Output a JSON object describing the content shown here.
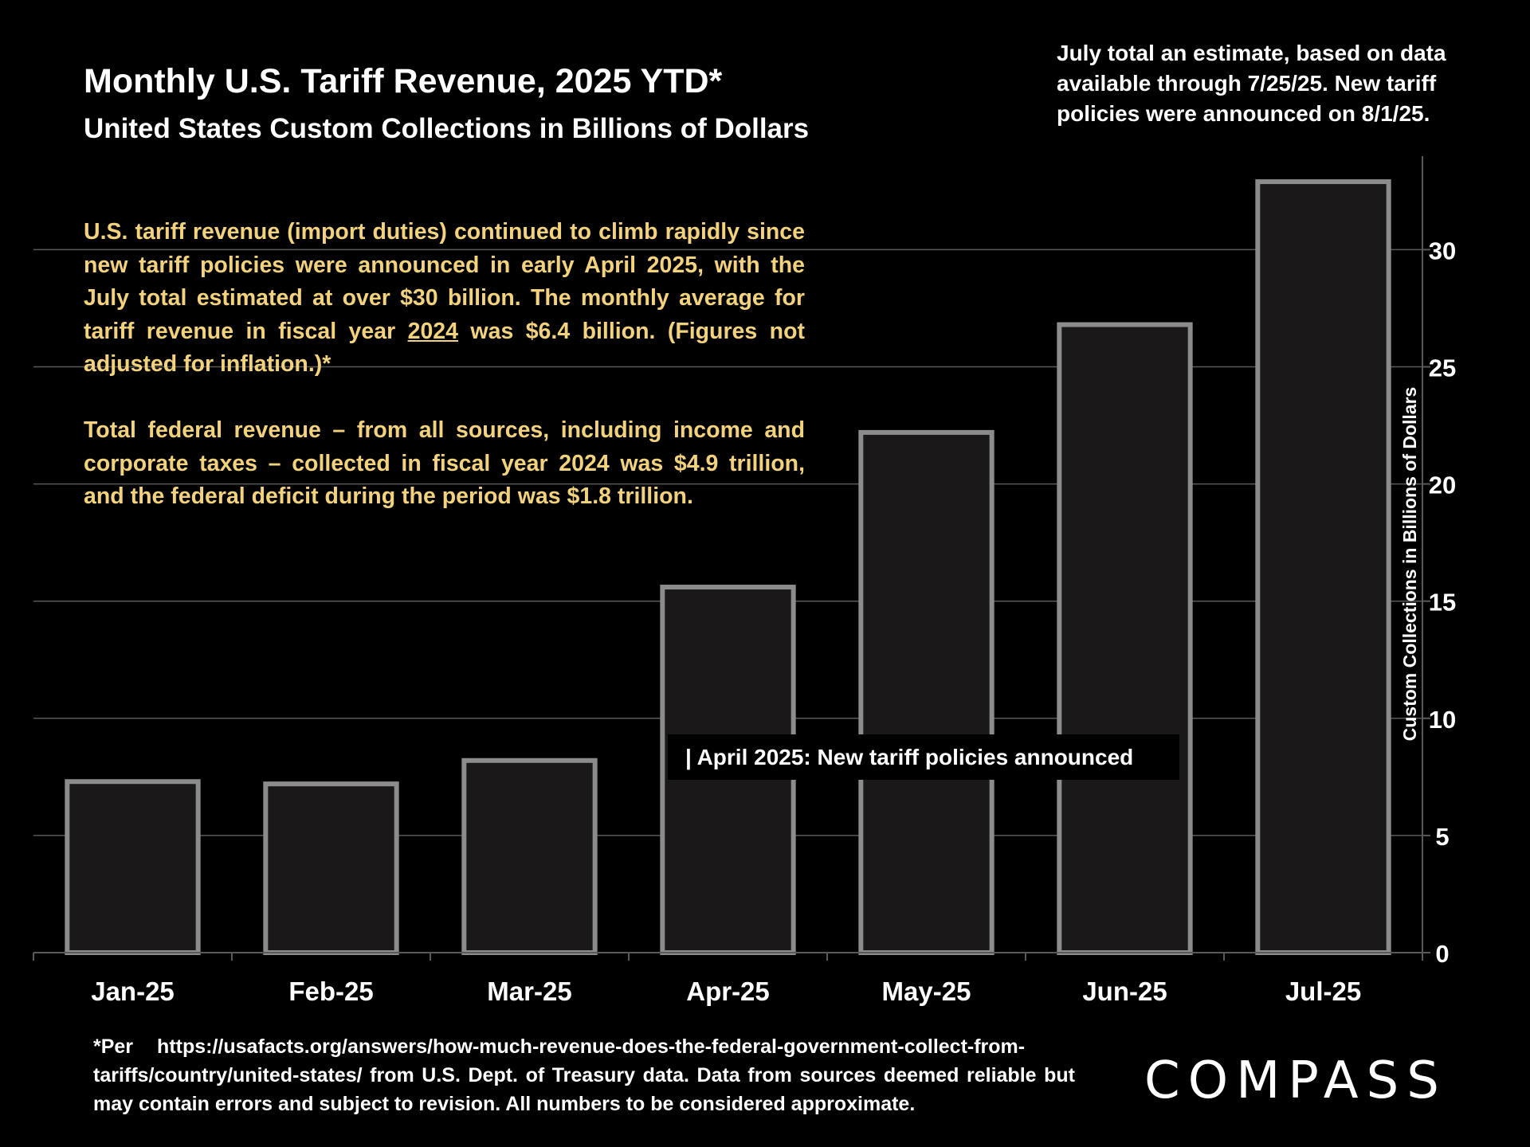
{
  "header": {
    "title": "Monthly U.S. Tariff Revenue, 2025 YTD*",
    "subtitle": "United States Custom Collections in Billions of Dollars",
    "note": "July total an estimate, based on data available through 7/25/25. New tariff policies were announced on 8/1/25."
  },
  "commentary": {
    "p1_before": "U.S. tariff revenue (import duties) continued to climb rapidly since new tariff policies were announced in early April 2025, with the July total estimated at over $30 billion. The monthly average for tariff revenue in fiscal year ",
    "p1_underlined": "2024",
    "p1_after": " was $6.4 billion. (Figures not adjusted for inflation.)*",
    "p2": "Total federal revenue – from all sources, including income and corporate taxes – collected in fiscal year 2024 was $4.9 trillion, and the federal deficit during the period was $1.8 trillion."
  },
  "annotation": "| April 2025:  New tariff policies announced",
  "footnote": {
    "prefix": "*Per",
    "text": "https://usafacts.org/answers/how-much-revenue-does-the-federal-government-collect-from-tariffs/country/united-states/ from U.S. Dept. of Treasury data. Data from sources deemed reliable but may contain errors and subject to revision. All numbers to  be considered approximate."
  },
  "logo": "COMPASS",
  "colors": {
    "background": "#000000",
    "bar_fill": "#1a1819",
    "bar_outline": "#8c8c8c",
    "gridline": "#595959",
    "commentary_text": "#f3d27e",
    "text": "#ffffff"
  },
  "chart_data": {
    "type": "bar",
    "title": "Monthly U.S. Tariff Revenue, 2025 YTD*",
    "subtitle": "United States Custom Collections in Billions of Dollars",
    "categories": [
      "Jan-25",
      "Feb-25",
      "Mar-25",
      "Apr-25",
      "May-25",
      "Jun-25",
      "Jul-25"
    ],
    "values": [
      7.3,
      7.2,
      8.2,
      15.6,
      22.2,
      26.8,
      32.9
    ],
    "ylabel": "Custom Collections in Billions of Dollars",
    "ylim": [
      0,
      34
    ],
    "yticks": [
      0,
      5,
      10,
      15,
      20,
      25,
      30
    ],
    "y_axis_position": "right",
    "grid": true,
    "legend": "none"
  }
}
